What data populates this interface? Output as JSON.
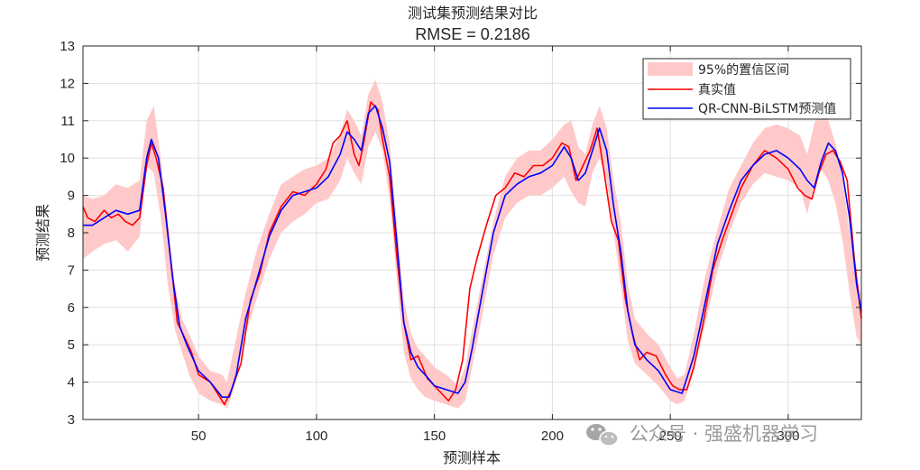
{
  "chart_data": {
    "type": "line",
    "title": "测试集预测结果对比",
    "subtitle": "RMSE = 0.2186",
    "xlabel": "预测样本",
    "ylabel": "预测结果",
    "xlim": [
      1,
      331
    ],
    "ylim": [
      3,
      13
    ],
    "xticks": [
      50,
      100,
      150,
      200,
      250,
      300
    ],
    "yticks": [
      3,
      4,
      5,
      6,
      7,
      8,
      9,
      10,
      11,
      12,
      13
    ],
    "grid": true,
    "legend_position": "top-right",
    "band": {
      "name": "95%的置信区间",
      "color": "#ffc9c9",
      "x": [
        1,
        5,
        10,
        15,
        20,
        25,
        28,
        31,
        34,
        37,
        40,
        43,
        46,
        50,
        55,
        60,
        62,
        65,
        70,
        75,
        80,
        85,
        90,
        95,
        100,
        105,
        110,
        113,
        116,
        119,
        122,
        125,
        128,
        131,
        134,
        137,
        140,
        143,
        146,
        150,
        155,
        160,
        163,
        166,
        170,
        175,
        180,
        185,
        190,
        195,
        200,
        205,
        208,
        211,
        214,
        217,
        220,
        223,
        226,
        229,
        232,
        235,
        240,
        245,
        250,
        253,
        256,
        260,
        265,
        270,
        275,
        280,
        285,
        290,
        295,
        300,
        305,
        308,
        311,
        314,
        317,
        320,
        323,
        326,
        329,
        331
      ],
      "upper": [
        9.0,
        8.9,
        9.0,
        9.3,
        9.2,
        9.4,
        11.0,
        11.4,
        10.0,
        8.1,
        6.6,
        5.7,
        5.3,
        4.7,
        4.3,
        4.2,
        4.0,
        4.9,
        6.4,
        7.6,
        8.5,
        9.3,
        9.5,
        9.7,
        9.8,
        10.0,
        10.6,
        11.3,
        11.0,
        10.6,
        11.7,
        12.1,
        11.5,
        10.4,
        8.3,
        6.2,
        5.3,
        4.9,
        4.7,
        4.4,
        4.2,
        3.9,
        4.4,
        5.4,
        6.7,
        8.3,
        9.5,
        10.0,
        10.2,
        10.2,
        10.5,
        10.9,
        11.0,
        10.3,
        10.1,
        10.9,
        11.4,
        10.8,
        9.4,
        8.3,
        6.6,
        5.7,
        5.3,
        5.0,
        4.4,
        4.1,
        4.2,
        5.3,
        6.9,
        8.1,
        9.2,
        9.8,
        10.4,
        10.8,
        10.9,
        10.8,
        10.6,
        10.1,
        10.9,
        11.5,
        11.0,
        10.4,
        9.5,
        8.0,
        6.8,
        6.3
      ],
      "lower": [
        7.3,
        7.5,
        7.7,
        7.8,
        7.5,
        7.9,
        9.8,
        9.6,
        8.4,
        6.6,
        5.4,
        4.8,
        4.2,
        3.7,
        3.5,
        3.4,
        3.3,
        3.8,
        5.3,
        6.3,
        7.3,
        8.0,
        8.3,
        8.5,
        8.8,
        8.9,
        9.4,
        10.0,
        9.6,
        9.3,
        10.3,
        10.7,
        10.2,
        8.9,
        6.8,
        4.8,
        4.1,
        3.8,
        3.6,
        3.5,
        3.4,
        3.3,
        3.5,
        4.4,
        5.7,
        7.4,
        8.4,
        8.8,
        9.0,
        9.0,
        9.2,
        9.5,
        9.1,
        8.8,
        8.7,
        9.6,
        10.0,
        9.4,
        8.0,
        6.6,
        5.1,
        4.5,
        4.2,
        3.9,
        3.5,
        3.4,
        3.5,
        4.3,
        5.6,
        7.0,
        8.0,
        8.8,
        9.3,
        9.6,
        9.5,
        9.4,
        9.2,
        8.5,
        9.3,
        9.7,
        9.4,
        8.8,
        7.8,
        6.4,
        5.2,
        5.0
      ]
    },
    "series": [
      {
        "name": "真实值",
        "color": "#ff0000",
        "x": [
          1,
          3,
          6,
          10,
          13,
          16,
          19,
          22,
          25,
          28,
          30,
          32,
          35,
          38,
          41,
          44,
          47,
          50,
          55,
          58,
          61,
          64,
          68,
          72,
          76,
          80,
          85,
          90,
          95,
          100,
          104,
          107,
          110,
          113,
          116,
          118,
          120,
          123,
          126,
          128,
          131,
          134,
          137,
          140,
          143,
          147,
          150,
          153,
          156,
          159,
          162,
          165,
          168,
          172,
          176,
          180,
          184,
          188,
          192,
          196,
          200,
          204,
          207,
          210,
          213,
          216,
          219,
          222,
          225,
          228,
          231,
          234,
          237,
          240,
          244,
          248,
          251,
          254,
          257,
          260,
          264,
          268,
          272,
          276,
          280,
          285,
          290,
          295,
          300,
          304,
          307,
          310,
          313,
          316,
          319,
          322,
          325,
          328,
          331
        ],
        "values": [
          8.7,
          8.4,
          8.3,
          8.6,
          8.4,
          8.5,
          8.3,
          8.2,
          8.4,
          9.8,
          10.4,
          10.0,
          9.2,
          7.4,
          5.6,
          5.2,
          4.8,
          4.2,
          4.0,
          3.7,
          3.4,
          3.8,
          4.5,
          6.2,
          6.9,
          8.0,
          8.7,
          9.1,
          9.0,
          9.3,
          9.7,
          10.4,
          10.6,
          11.0,
          10.1,
          9.8,
          10.4,
          11.5,
          11.3,
          10.5,
          9.5,
          7.4,
          5.6,
          4.6,
          4.7,
          4.1,
          3.9,
          3.7,
          3.5,
          3.8,
          4.6,
          6.5,
          7.3,
          8.2,
          9.0,
          9.2,
          9.6,
          9.5,
          9.8,
          9.8,
          10.0,
          10.4,
          10.3,
          9.4,
          9.8,
          10.2,
          10.8,
          9.6,
          8.3,
          7.8,
          6.2,
          5.3,
          4.6,
          4.8,
          4.7,
          4.2,
          3.9,
          3.8,
          3.8,
          4.4,
          5.6,
          7.0,
          7.8,
          8.5,
          9.2,
          9.8,
          10.2,
          10.0,
          9.7,
          9.2,
          9.0,
          8.9,
          9.6,
          10.1,
          10.2,
          9.9,
          9.4,
          7.3,
          5.7
        ]
      },
      {
        "name": "QR-CNN-BiLSTM预测值",
        "color": "#0000ff",
        "x": [
          1,
          5,
          10,
          15,
          20,
          25,
          28,
          30,
          33,
          36,
          39,
          42,
          45,
          50,
          55,
          60,
          63,
          66,
          70,
          75,
          80,
          85,
          90,
          95,
          100,
          105,
          110,
          113,
          116,
          119,
          122,
          125,
          128,
          131,
          134,
          137,
          140,
          143,
          146,
          150,
          155,
          160,
          163,
          166,
          170,
          175,
          180,
          185,
          190,
          195,
          200,
          205,
          208,
          211,
          214,
          217,
          220,
          223,
          226,
          229,
          232,
          235,
          240,
          245,
          250,
          255,
          260,
          265,
          270,
          275,
          280,
          285,
          290,
          295,
          300,
          305,
          308,
          311,
          314,
          317,
          320,
          323,
          326,
          329,
          331
        ],
        "values": [
          8.2,
          8.2,
          8.4,
          8.6,
          8.5,
          8.6,
          10.0,
          10.5,
          10.0,
          8.5,
          6.8,
          5.5,
          5.0,
          4.3,
          4.0,
          3.6,
          3.6,
          4.2,
          5.7,
          6.8,
          7.9,
          8.6,
          9.0,
          9.1,
          9.2,
          9.5,
          10.1,
          10.7,
          10.5,
          10.2,
          11.2,
          11.4,
          10.8,
          9.9,
          7.8,
          5.6,
          4.8,
          4.4,
          4.2,
          3.9,
          3.8,
          3.7,
          4.0,
          4.9,
          6.3,
          8.0,
          9.0,
          9.3,
          9.5,
          9.6,
          9.8,
          10.3,
          10.0,
          9.4,
          9.6,
          10.2,
          10.8,
          10.2,
          8.7,
          7.5,
          5.9,
          5.0,
          4.6,
          4.3,
          3.8,
          3.7,
          4.7,
          6.2,
          7.7,
          8.6,
          9.4,
          9.8,
          10.1,
          10.2,
          10.0,
          9.7,
          9.4,
          9.2,
          9.9,
          10.4,
          10.2,
          9.6,
          8.4,
          6.6,
          5.9
        ]
      }
    ]
  },
  "watermark": {
    "text": "公众号 · 强盛机器学习",
    "icon": "wechat-icon"
  }
}
